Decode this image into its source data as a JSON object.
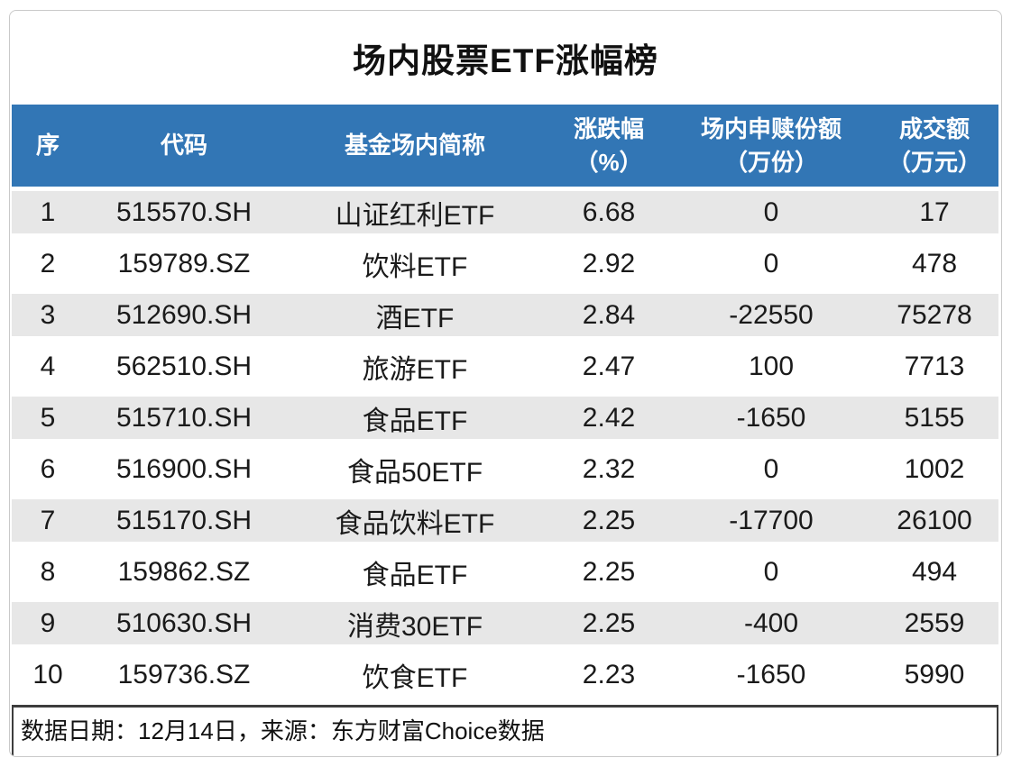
{
  "title": "场内股票ETF涨幅榜",
  "header": {
    "columns": [
      {
        "label": "序",
        "sub": ""
      },
      {
        "label": "代码",
        "sub": ""
      },
      {
        "label": "基金场内简称",
        "sub": ""
      },
      {
        "label": "涨跌幅",
        "sub": "（%）"
      },
      {
        "label": "场内申赎份额",
        "sub": "（万份）"
      },
      {
        "label": "成交额",
        "sub": "（万元）"
      }
    ]
  },
  "footer": {
    "note": "数据日期：12月14日，来源：东方财富Choice数据"
  },
  "colors": {
    "header_bg": "#3276b5",
    "header_text": "#ffffff",
    "row_alt_bg": "#e7e7e7",
    "card_border": "#c9c9c9",
    "footer_border": "#3d3d3d",
    "text": "#1a1a1a"
  },
  "chart_data": {
    "type": "table",
    "title": "场内股票ETF涨幅榜",
    "columns": [
      "序",
      "代码",
      "基金场内简称",
      "涨跌幅（%）",
      "场内申赎份额（万份）",
      "成交额（万元）"
    ],
    "rows": [
      [
        1,
        "515570.SH",
        "山证红利ETF",
        6.68,
        0,
        17
      ],
      [
        2,
        "159789.SZ",
        "饮料ETF",
        2.92,
        0,
        478
      ],
      [
        3,
        "512690.SH",
        "酒ETF",
        2.84,
        -22550,
        75278
      ],
      [
        4,
        "562510.SH",
        "旅游ETF",
        2.47,
        100,
        7713
      ],
      [
        5,
        "515710.SH",
        "食品ETF",
        2.42,
        -1650,
        5155
      ],
      [
        6,
        "516900.SH",
        "食品50ETF",
        2.32,
        0,
        1002
      ],
      [
        7,
        "515170.SH",
        "食品饮料ETF",
        2.25,
        -17700,
        26100
      ],
      [
        8,
        "159862.SZ",
        "食品ETF",
        2.25,
        0,
        494
      ],
      [
        9,
        "510630.SH",
        "消费30ETF",
        2.25,
        -400,
        2559
      ],
      [
        10,
        "159736.SZ",
        "饮食ETF",
        2.23,
        -1650,
        5990
      ]
    ],
    "note": "数据日期：12月14日，来源：东方财富Choice数据",
    "row_striping": "odd-rows-gray",
    "legend_position": "none",
    "grid": false
  }
}
